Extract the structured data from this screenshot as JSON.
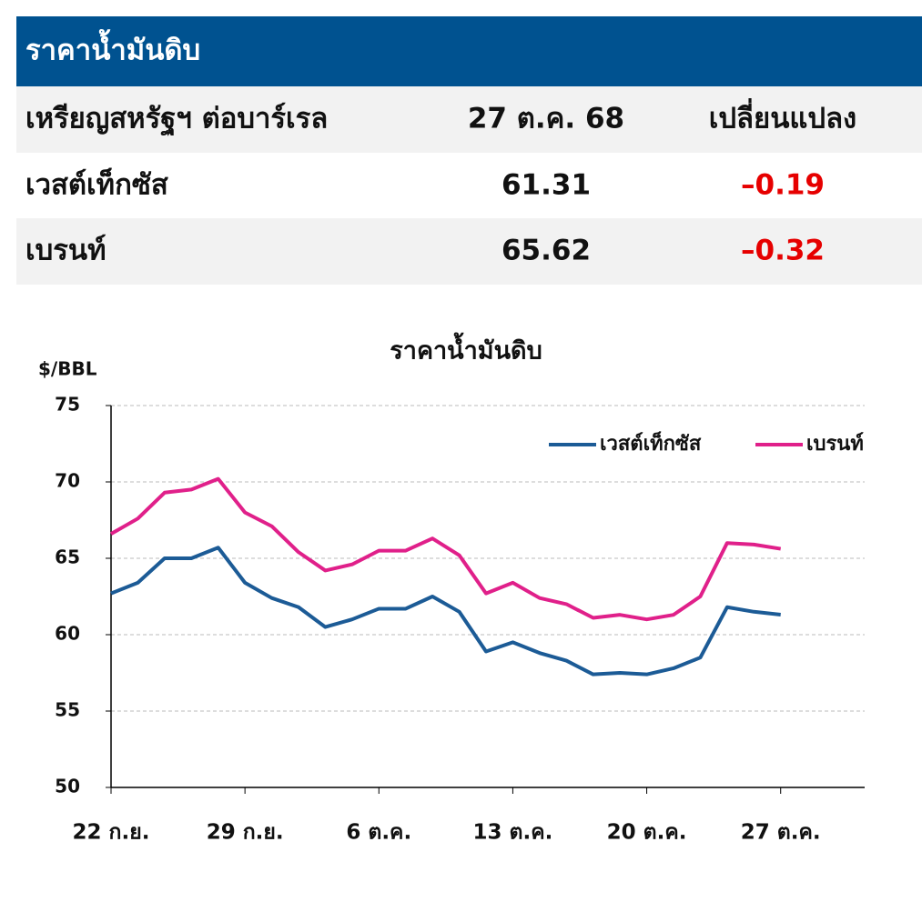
{
  "header": {
    "title": "ราคาน้ำมันดิบ"
  },
  "table": {
    "columns": [
      "เหรียญสหรัฐฯ ต่อบาร์เรล",
      "27 ต.ค. 68",
      "เปลี่ยนแปลง"
    ],
    "rows": [
      [
        "เวสต์เท็กซัส",
        "61.31",
        "–0.19"
      ],
      [
        "เบรนท์",
        "65.62",
        "–0.32"
      ]
    ]
  },
  "chart_data": {
    "type": "line",
    "title": "ราคาน้ำมันดิบ",
    "y_label": "$/BBL",
    "categories": [
      "22 ก.ย.",
      null,
      null,
      null,
      null,
      "29 ก.ย.",
      null,
      null,
      null,
      null,
      "6 ต.ค.",
      null,
      null,
      null,
      null,
      "13 ต.ค.",
      null,
      null,
      null,
      null,
      "20 ต.ค.",
      null,
      null,
      null,
      null,
      "27 ต.ค.",
      null,
      null,
      null
    ],
    "series": [
      {
        "name": "เวสต์เท็กซัส",
        "color": "#1c5b96",
        "values": [
          62.7,
          63.4,
          65.0,
          65.0,
          65.7,
          63.4,
          62.4,
          61.8,
          60.5,
          61.0,
          61.7,
          61.7,
          62.5,
          61.5,
          58.9,
          59.5,
          58.8,
          58.3,
          57.4,
          57.5,
          57.4,
          57.8,
          58.5,
          61.8,
          61.5,
          61.31,
          null,
          null,
          null
        ]
      },
      {
        "name": "เบรนท์",
        "color": "#e0208a",
        "values": [
          66.6,
          67.6,
          69.3,
          69.5,
          70.2,
          68.0,
          67.1,
          65.4,
          64.2,
          64.6,
          65.5,
          65.5,
          66.3,
          65.2,
          62.7,
          63.4,
          62.4,
          62.0,
          61.1,
          61.3,
          61.0,
          61.3,
          62.5,
          66.0,
          65.9,
          65.62,
          null,
          null,
          null
        ]
      }
    ],
    "ylim": [
      50,
      75
    ],
    "yticks": [
      50,
      55,
      60,
      65,
      70,
      75
    ],
    "grid": true,
    "legend": "upper right"
  }
}
